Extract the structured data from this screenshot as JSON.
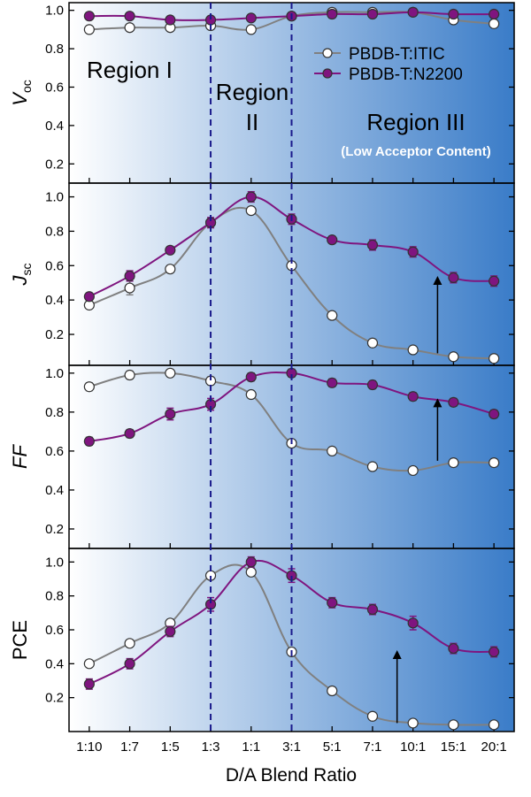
{
  "colors": {
    "itic": "#808080",
    "n2200": "#7f157f",
    "divider": "#1a1a8c",
    "gradient_start": "#ffffff",
    "gradient_end": "#3a7cc8"
  },
  "chart_data": {
    "type": "line",
    "x_categories": [
      "1:10",
      "1:7",
      "1:5",
      "1:3",
      "1:1",
      "3:1",
      "5:1",
      "7:1",
      "10:1",
      "15:1",
      "20:1"
    ],
    "xlabel": "D/A Blend Ratio",
    "region_dividers_at": [
      "1:3",
      "3:1"
    ],
    "annotations": {
      "region1": "Region I",
      "region2_line1": "Region",
      "region2_line2": "II",
      "region3": "Region III",
      "region3_sub": "(Low Acceptor Content)"
    },
    "legend": {
      "placement": "top-right of top panel",
      "entries": [
        "PBDB-T:ITIC",
        "PBDB-T:N2200"
      ]
    },
    "panels": [
      {
        "ylabel_main": "V",
        "ylabel_sub": "oc",
        "ylabel_italic": true,
        "ylim": [
          0.1,
          1.04
        ],
        "yticks": [
          0.2,
          0.4,
          0.6,
          0.8,
          1.0
        ],
        "yticklabels": [
          "0.2",
          "0.4",
          "0.6",
          "0.8",
          "1.0"
        ],
        "series": [
          {
            "name": "PBDB-T:ITIC",
            "values": [
              0.9,
              0.91,
              0.91,
              0.92,
              0.9,
              0.97,
              0.99,
              0.99,
              0.99,
              0.95,
              0.93
            ],
            "err": [
              0.01,
              0.01,
              0.01,
              0.01,
              0.01,
              0.01,
              0.01,
              0.01,
              0.01,
              0.01,
              0.01
            ]
          },
          {
            "name": "PBDB-T:N2200",
            "values": [
              0.97,
              0.97,
              0.95,
              0.95,
              0.96,
              0.97,
              0.98,
              0.98,
              0.99,
              0.98,
              0.98
            ],
            "err": [
              0.01,
              0.01,
              0.01,
              0.01,
              0.01,
              0.01,
              0.02,
              0.01,
              0.02,
              0.01,
              0.01
            ]
          }
        ]
      },
      {
        "ylabel_main": "J",
        "ylabel_sub": "sc",
        "ylabel_italic": true,
        "ylim": [
          0.02,
          1.08
        ],
        "yticks": [
          0.2,
          0.4,
          0.6,
          0.8,
          1.0
        ],
        "yticklabels": [
          "0.2",
          "0.4",
          "0.6",
          "0.8",
          "1.0"
        ],
        "arrow": {
          "x": "15:1",
          "from": 0.09,
          "to": 0.54
        },
        "series": [
          {
            "name": "PBDB-T:ITIC",
            "values": [
              0.37,
              0.47,
              0.58,
              0.85,
              0.92,
              0.6,
              0.31,
              0.15,
              0.11,
              0.07,
              0.06
            ],
            "err": [
              0.02,
              0.04,
              0.02,
              0.02,
              0.0,
              0.0,
              0.0,
              0.0,
              0.0,
              0.0,
              0.0
            ]
          },
          {
            "name": "PBDB-T:N2200",
            "values": [
              0.42,
              0.54,
              0.69,
              0.85,
              1.0,
              0.87,
              0.75,
              0.72,
              0.68,
              0.53,
              0.51
            ],
            "err": [
              0.02,
              0.03,
              0.02,
              0.03,
              0.03,
              0.03,
              0.02,
              0.03,
              0.03,
              0.03,
              0.03
            ]
          }
        ]
      },
      {
        "ylabel_main": "FF",
        "ylabel_sub": "",
        "ylabel_italic": true,
        "ylim": [
          0.1,
          1.04
        ],
        "yticks": [
          0.2,
          0.4,
          0.6,
          0.8,
          1.0
        ],
        "yticklabels": [
          "0.2",
          "0.4",
          "0.6",
          "0.8",
          "1.0"
        ],
        "arrow": {
          "x": "15:1",
          "from": 0.55,
          "to": 0.87
        },
        "series": [
          {
            "name": "PBDB-T:ITIC",
            "values": [
              0.93,
              0.99,
              1.0,
              0.96,
              0.89,
              0.64,
              0.6,
              0.52,
              0.5,
              0.54,
              0.54
            ],
            "err": [
              0.02,
              0.02,
              0.0,
              0.02,
              0.0,
              0.0,
              0.0,
              0.0,
              0.0,
              0.0,
              0.0
            ]
          },
          {
            "name": "PBDB-T:N2200",
            "values": [
              0.65,
              0.69,
              0.79,
              0.84,
              0.98,
              1.0,
              0.95,
              0.94,
              0.88,
              0.85,
              0.79
            ],
            "err": [
              0.02,
              0.02,
              0.03,
              0.03,
              0.02,
              0.02,
              0.02,
              0.02,
              0.02,
              0.02,
              0.02
            ]
          }
        ]
      },
      {
        "ylabel_main": "PCE",
        "ylabel_sub": "",
        "ylabel_italic": false,
        "ylim": [
          0.0,
          1.08
        ],
        "yticks": [
          0.2,
          0.4,
          0.6,
          0.8,
          1.0
        ],
        "yticklabels": [
          "0.2",
          "0.4",
          "0.6",
          "0.8",
          "1.0"
        ],
        "arrow": {
          "x": "10:1",
          "from": 0.05,
          "to": 0.48
        },
        "series": [
          {
            "name": "PBDB-T:ITIC",
            "values": [
              0.4,
              0.52,
              0.64,
              0.92,
              0.94,
              0.47,
              0.24,
              0.09,
              0.05,
              0.04,
              0.04
            ],
            "err": [
              0.0,
              0.0,
              0.0,
              0.0,
              0.0,
              0.0,
              0.0,
              0.0,
              0.0,
              0.0,
              0.0
            ]
          },
          {
            "name": "PBDB-T:N2200",
            "values": [
              0.28,
              0.4,
              0.59,
              0.75,
              1.0,
              0.92,
              0.76,
              0.72,
              0.64,
              0.49,
              0.47
            ],
            "err": [
              0.03,
              0.03,
              0.03,
              0.04,
              0.03,
              0.04,
              0.03,
              0.03,
              0.04,
              0.03,
              0.03
            ]
          }
        ]
      }
    ]
  }
}
